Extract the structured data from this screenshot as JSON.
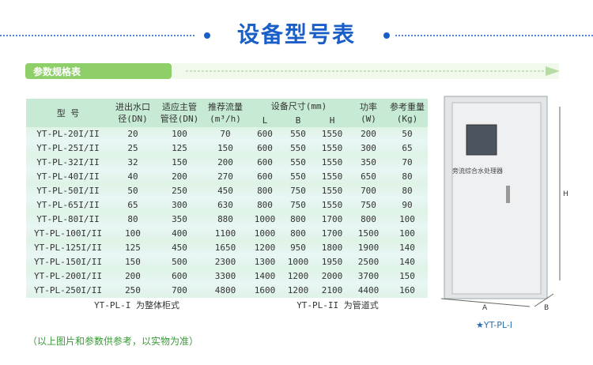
{
  "title": "设备型号表",
  "section_label": "参数规格表",
  "table": {
    "header": {
      "model": "型 号",
      "inlet": [
        "进出水口",
        "径(DN)"
      ],
      "pipe": [
        "适应主管",
        "管径(DN)"
      ],
      "flow": [
        "推荐流量",
        "(m³/h)"
      ],
      "size": "设备尺寸(mm)",
      "size_cols": [
        "L",
        "B",
        "H"
      ],
      "power": [
        "功率",
        "(W)"
      ],
      "weight": [
        "参考重量",
        "(Kg)"
      ]
    },
    "rows": [
      [
        "YT-PL-20I/II",
        "20",
        "100",
        "70",
        "600",
        "550",
        "1550",
        "200",
        "50"
      ],
      [
        "YT-PL-25I/II",
        "25",
        "125",
        "150",
        "600",
        "550",
        "1550",
        "300",
        "65"
      ],
      [
        "YT-PL-32I/II",
        "32",
        "150",
        "200",
        "600",
        "550",
        "1550",
        "350",
        "70"
      ],
      [
        "YT-PL-40I/II",
        "40",
        "200",
        "270",
        "600",
        "550",
        "1550",
        "650",
        "80"
      ],
      [
        "YT-PL-50I/II",
        "50",
        "250",
        "450",
        "800",
        "750",
        "1550",
        "700",
        "80"
      ],
      [
        "YT-PL-65I/II",
        "65",
        "300",
        "630",
        "800",
        "750",
        "1550",
        "750",
        "90"
      ],
      [
        "YT-PL-80I/II",
        "80",
        "350",
        "880",
        "1000",
        "800",
        "1700",
        "800",
        "100"
      ],
      [
        "YT-PL-100I/II",
        "100",
        "400",
        "1100",
        "1000",
        "800",
        "1700",
        "1500",
        "100"
      ],
      [
        "YT-PL-125I/II",
        "125",
        "450",
        "1650",
        "1200",
        "950",
        "1800",
        "1900",
        "140"
      ],
      [
        "YT-PL-150I/II",
        "150",
        "500",
        "2300",
        "1300",
        "1000",
        "1950",
        "2500",
        "140"
      ],
      [
        "YT-PL-200I/II",
        "200",
        "600",
        "3300",
        "1400",
        "1200",
        "2000",
        "3700",
        "150"
      ],
      [
        "YT-PL-250I/II",
        "250",
        "700",
        "4800",
        "1600",
        "1200",
        "2100",
        "4400",
        "160"
      ]
    ],
    "footer": [
      "YT-PL-I 为整体柜式",
      "YT-PL-II 为管道式"
    ]
  },
  "note": "（以上图片和参数供参考，以实物为准）",
  "product": {
    "screen_label": "旁流综合水处理器",
    "dim_h": "H",
    "dim_a": "A",
    "dim_b": "B",
    "caption": "★YT-PL-I"
  }
}
